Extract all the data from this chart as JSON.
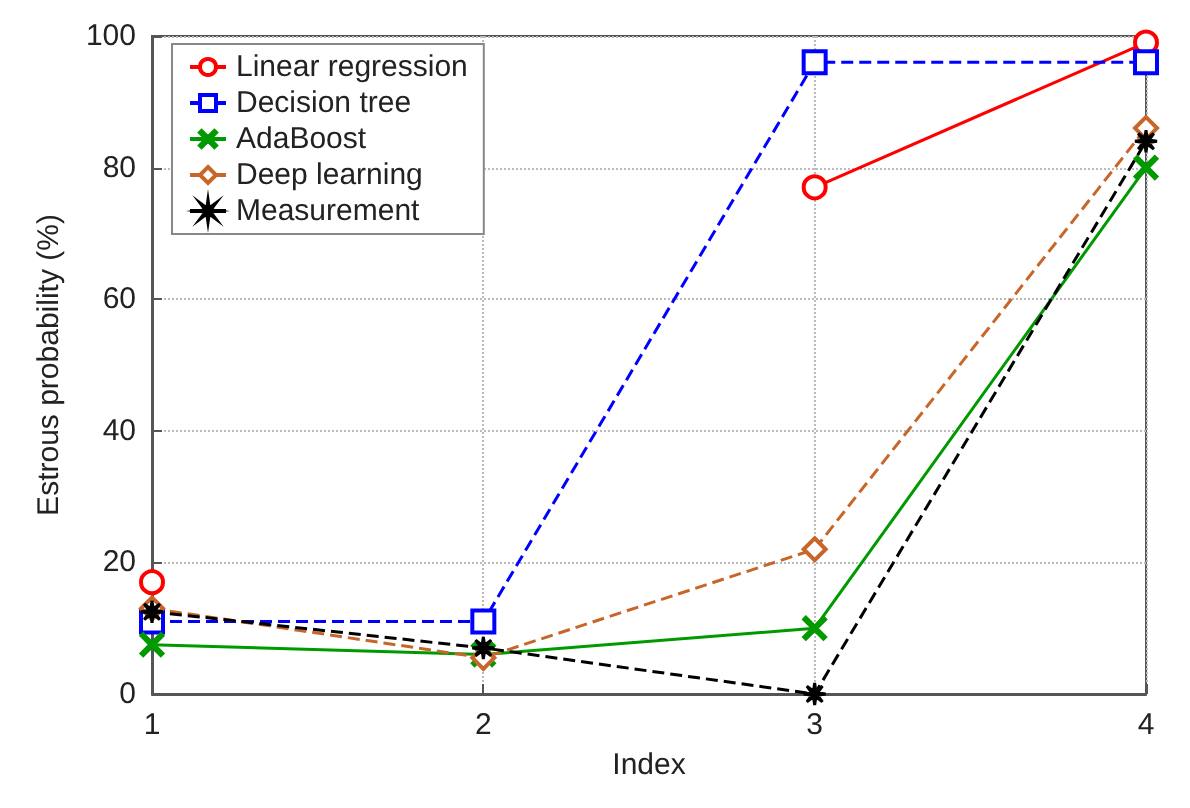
{
  "chart_data": {
    "type": "line",
    "xlabel": "Index",
    "ylabel": "Estrous probability (%)",
    "x": [
      1,
      2,
      3,
      4
    ],
    "series": [
      {
        "name": "Linear regression",
        "color": "#ff0000",
        "marker": "circle",
        "line_style": "solid",
        "values": [
          17,
          null,
          77,
          99
        ]
      },
      {
        "name": "Decision tree",
        "color": "#0000ff",
        "marker": "square",
        "line_style": "dashed",
        "values": [
          11,
          11,
          96,
          96
        ]
      },
      {
        "name": "AdaBoost",
        "color": "#009900",
        "marker": "cross",
        "line_style": "solid",
        "values": [
          7.5,
          6,
          10,
          80
        ]
      },
      {
        "name": "Deep learning",
        "color": "#c8662a",
        "marker": "diamond",
        "line_style": "dashed",
        "values": [
          13,
          5.5,
          22,
          86
        ]
      },
      {
        "name": "Measurement",
        "color": "#000000",
        "marker": "star",
        "line_style": "dashed",
        "values": [
          12.5,
          7,
          0,
          84
        ]
      }
    ],
    "xlim": [
      1,
      4
    ],
    "xticks": [
      1,
      2,
      3,
      4
    ],
    "ylim": [
      0,
      100
    ],
    "yticks": [
      0,
      20,
      40,
      60,
      80,
      100
    ],
    "grid": true,
    "legend": "top left"
  }
}
